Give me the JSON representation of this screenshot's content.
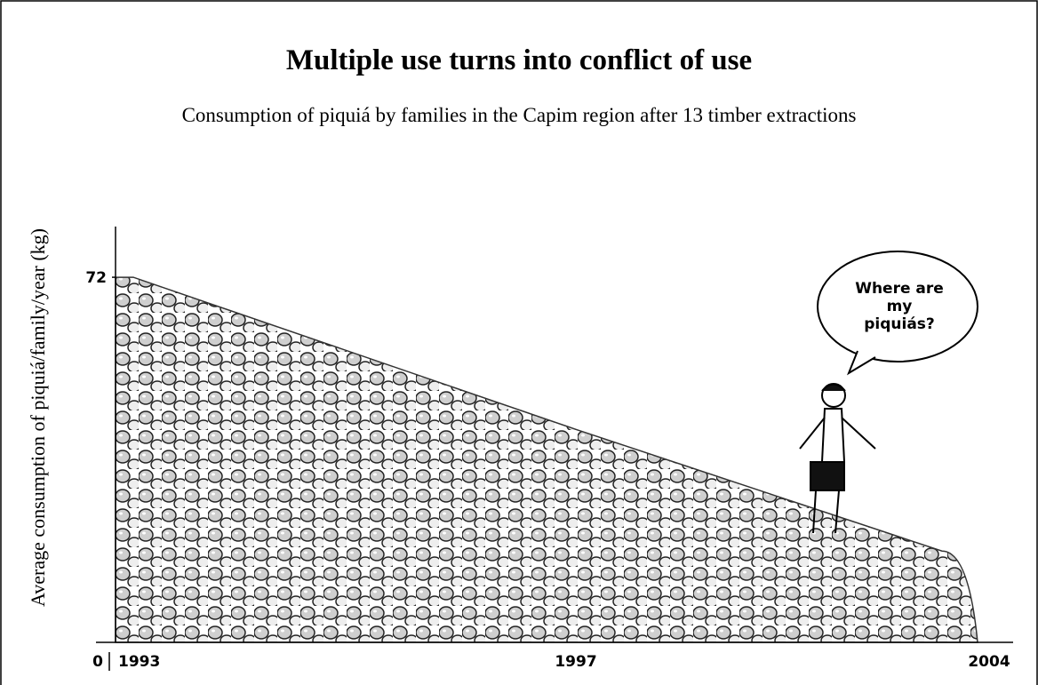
{
  "chart_data": {
    "type": "area",
    "title": "Multiple use turns into conflict of use",
    "subtitle": "Consumption of piquiá by families in the Capim region after 13 timber extractions",
    "y_label": "Average consumption of piquiá/family/year (kg)",
    "categories": [
      "1993",
      "1997",
      "2004"
    ],
    "values": [
      72,
      42,
      18
    ],
    "ylim": [
      0,
      82
    ],
    "yticks": [
      0,
      72
    ],
    "color": "#9a9a9a",
    "annotations": [
      "Where are",
      "my",
      "piquiás?"
    ]
  }
}
